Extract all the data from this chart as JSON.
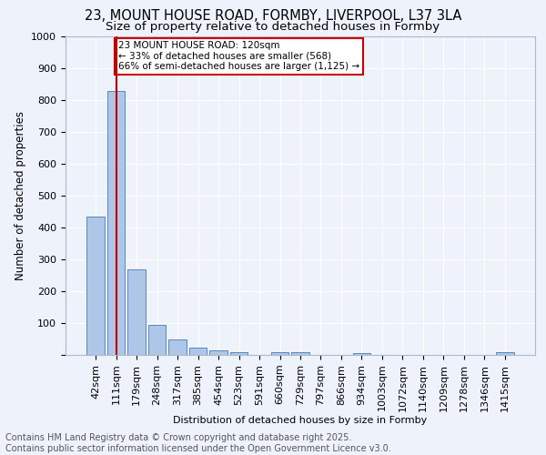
{
  "title1": "23, MOUNT HOUSE ROAD, FORMBY, LIVERPOOL, L37 3LA",
  "title2": "Size of property relative to detached houses in Formby",
  "xlabel": "Distribution of detached houses by size in Formby",
  "ylabel": "Number of detached properties",
  "categories": [
    "42sqm",
    "111sqm",
    "179sqm",
    "248sqm",
    "317sqm",
    "385sqm",
    "454sqm",
    "523sqm",
    "591sqm",
    "660sqm",
    "729sqm",
    "797sqm",
    "866sqm",
    "934sqm",
    "1003sqm",
    "1072sqm",
    "1140sqm",
    "1209sqm",
    "1278sqm",
    "1346sqm",
    "1415sqm"
  ],
  "values": [
    434,
    830,
    270,
    95,
    50,
    23,
    15,
    10,
    0,
    10,
    10,
    0,
    0,
    5,
    0,
    0,
    0,
    0,
    0,
    0,
    8
  ],
  "bar_color": "#aec6e8",
  "bar_edge_color": "#5588bb",
  "vline_x": 1.0,
  "vline_color": "#cc0000",
  "annotation_text": "23 MOUNT HOUSE ROAD: 120sqm\n← 33% of detached houses are smaller (568)\n66% of semi-detached houses are larger (1,125) →",
  "annotation_box_color": "#ffffff",
  "annotation_box_edge_color": "#cc0000",
  "ylim": [
    0,
    1000
  ],
  "yticks": [
    0,
    100,
    200,
    300,
    400,
    500,
    600,
    700,
    800,
    900,
    1000
  ],
  "bg_color": "#eef2fb",
  "footnote": "Contains HM Land Registry data © Crown copyright and database right 2025.\nContains public sector information licensed under the Open Government Licence v3.0.",
  "title_fontsize": 10.5,
  "subtitle_fontsize": 9.5,
  "footnote_fontsize": 7,
  "axis_fontsize": 8,
  "tick_fontsize": 8,
  "ylabel_fontsize": 8.5
}
